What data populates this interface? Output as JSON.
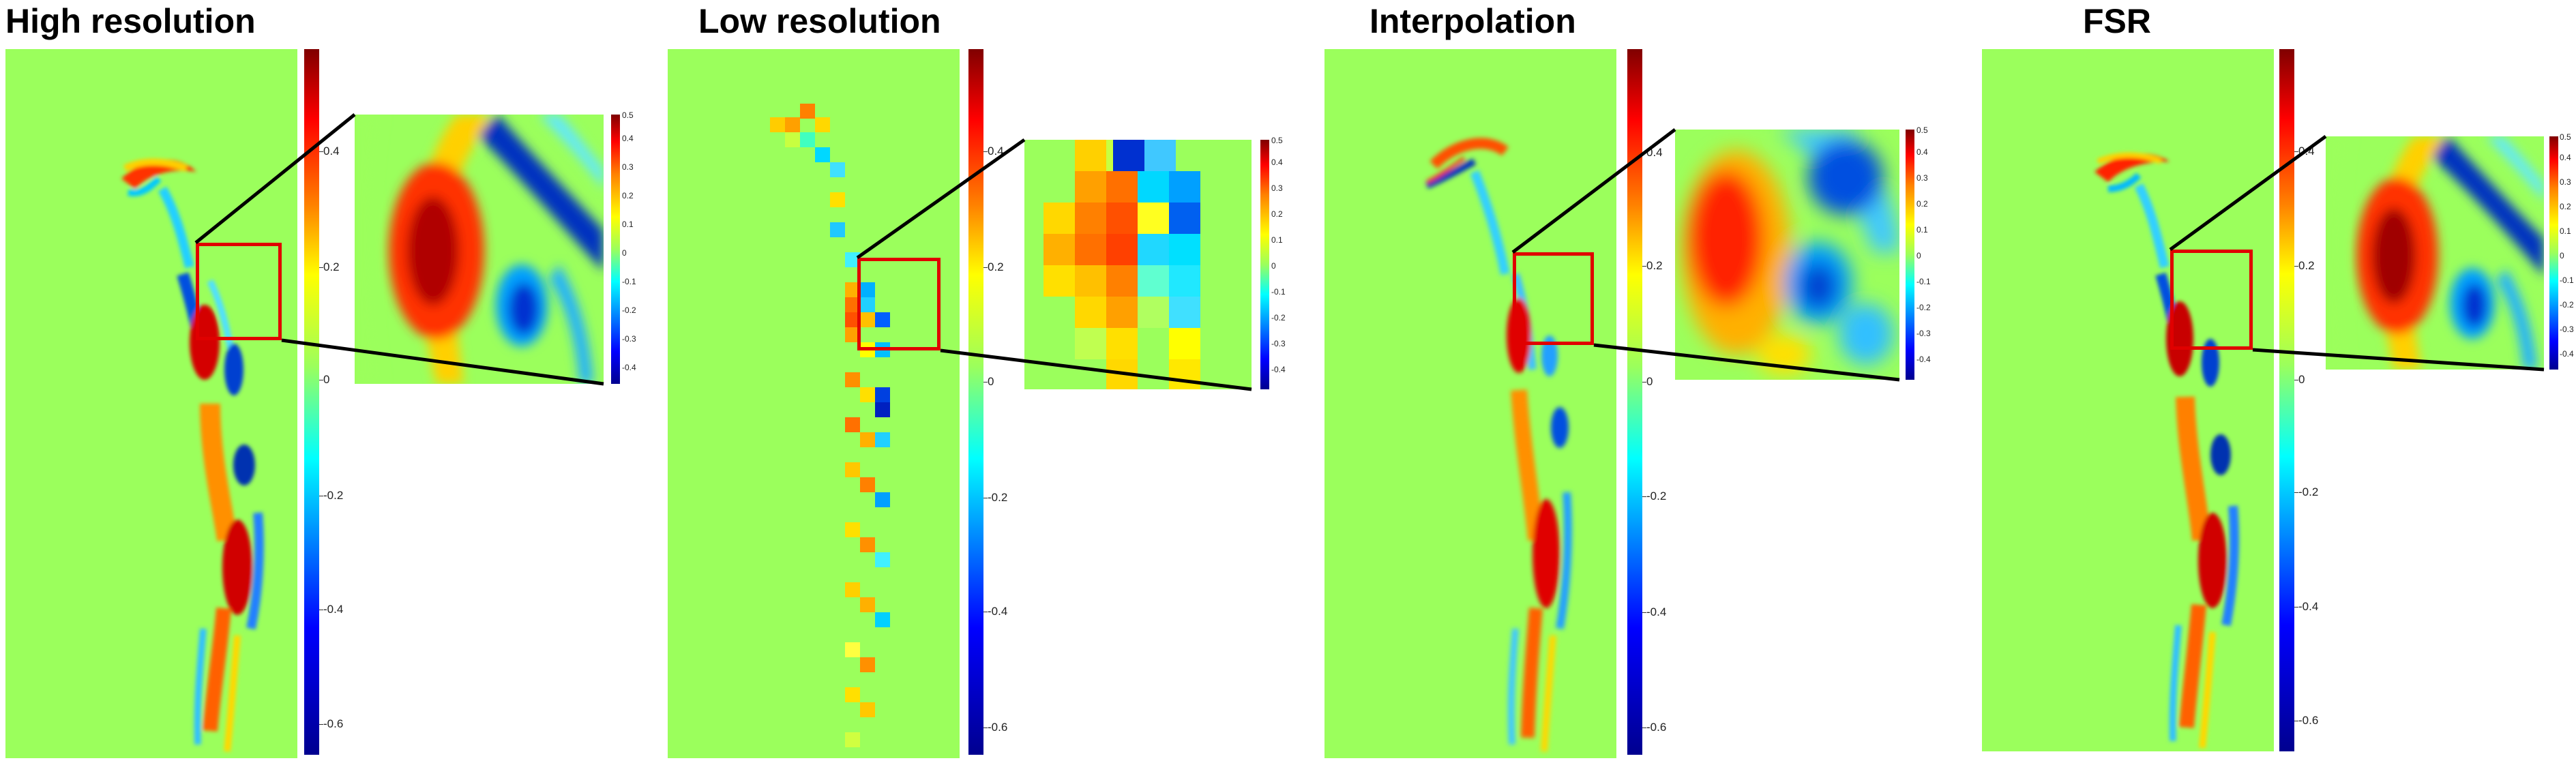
{
  "colormap": "jet",
  "background_field_color": "#9bff5c",
  "highlight_box_color": "#e00000",
  "panels": [
    {
      "title": "High resolution",
      "main_colorbar_ticks": [
        "0.4",
        "0.2",
        "0",
        "-0.2",
        "-0.4",
        "-0.6"
      ],
      "inset_colorbar_ticks": [
        "0.5",
        "0.4",
        "0.3",
        "0.2",
        "0.1",
        "0",
        "-0.1",
        "-0.2",
        "-0.3",
        "-0.4"
      ]
    },
    {
      "title": "Low resolution",
      "main_colorbar_ticks": [
        "0.4",
        "0.2",
        "0",
        "-0.2",
        "-0.4",
        "-0.6"
      ],
      "inset_colorbar_ticks": [
        "0.5",
        "0.4",
        "0.3",
        "0.2",
        "0.1",
        "0",
        "-0.1",
        "-0.2",
        "-0.3",
        "-0.4"
      ]
    },
    {
      "title": "Interpolation",
      "main_colorbar_ticks": [
        "0.4",
        "0.2",
        "0",
        "-0.2",
        "-0.4",
        "-0.6"
      ],
      "inset_colorbar_ticks": [
        "0.5",
        "0.4",
        "0.3",
        "0.2",
        "0.1",
        "0",
        "-0.1",
        "-0.2",
        "-0.3",
        "-0.4"
      ]
    },
    {
      "title": "FSR",
      "main_colorbar_ticks": [
        "0.4",
        "0.2",
        "0",
        "-0.2",
        "-0.4",
        "-0.6"
      ],
      "inset_colorbar_ticks": [
        "0.5",
        "0.4",
        "0.3",
        "0.2",
        "0.1",
        "0",
        "-0.1",
        "-0.2",
        "-0.3",
        "-0.4"
      ]
    }
  ]
}
